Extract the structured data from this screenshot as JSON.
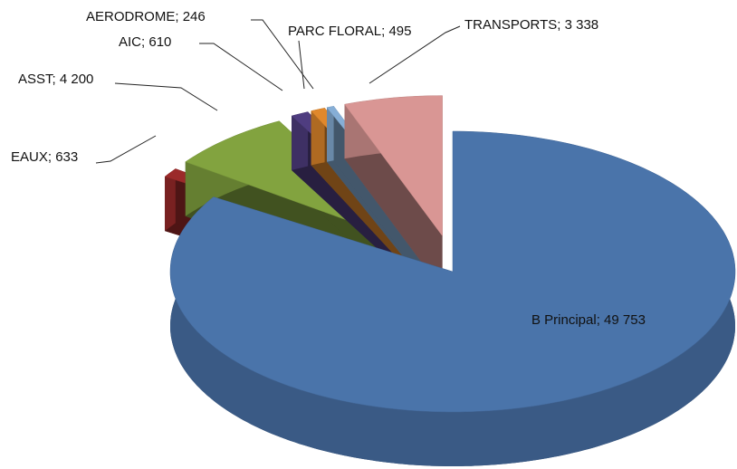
{
  "chart_data": {
    "type": "pie",
    "categories": [
      "B Principal",
      "EAUX",
      "ASST",
      "AIC",
      "PARC FLORAL",
      "AERODROME",
      "TRANSPORTS"
    ],
    "values": [
      49753,
      633,
      4200,
      610,
      495,
      246,
      3338
    ],
    "value_labels": [
      "49 753",
      "633",
      "4 200",
      "610",
      "495",
      "246",
      "3 338"
    ],
    "label_separator": "; ",
    "colors": [
      "#4a74aa",
      "#9b2a2a",
      "#82a33f",
      "#4f3d80",
      "#e0882c",
      "#86aed6",
      "#d99694"
    ]
  }
}
